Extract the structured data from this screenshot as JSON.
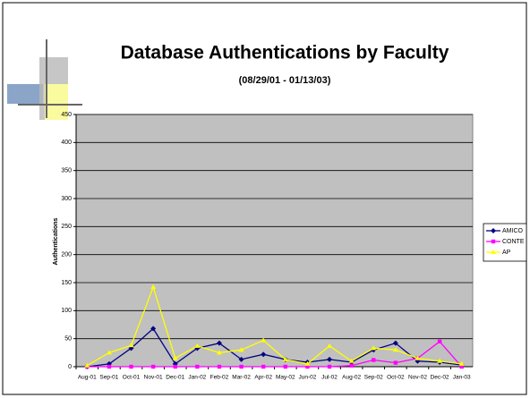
{
  "chart_data": {
    "type": "line",
    "title": "Database Authentications by Faculty",
    "subtitle": "(08/29/01 - 01/13/03)",
    "y_label": "Authentications",
    "categories": [
      "Aug-01",
      "Sep-01",
      "Oct-01",
      "Nov-01",
      "Dec-01",
      "Jan-02",
      "Feb-02",
      "Mar-02",
      "Apr-02",
      "May-02",
      "Jun-02",
      "Jul-02",
      "Aug-02",
      "Sep-02",
      "Oct-02",
      "Nov-02",
      "Dec-02",
      "Jan-03"
    ],
    "series": [
      {
        "name": "AMICO",
        "color": "#000080",
        "values": [
          0,
          5,
          33,
          68,
          5,
          33,
          42,
          13,
          22,
          13,
          8,
          13,
          8,
          30,
          42,
          10,
          8,
          3
        ]
      },
      {
        "name": "CONTE",
        "color": "#ff00ff",
        "values": [
          0,
          0,
          0,
          0,
          0,
          0,
          0,
          0,
          0,
          0,
          0,
          0,
          2,
          12,
          7,
          15,
          45,
          0
        ]
      },
      {
        "name": "AP",
        "color": "#ffff00",
        "values": [
          2,
          25,
          38,
          142,
          15,
          37,
          25,
          30,
          47,
          13,
          5,
          37,
          10,
          33,
          30,
          15,
          10,
          5
        ]
      }
    ],
    "ylim": [
      0,
      450
    ],
    "yticks": [
      0,
      50,
      100,
      150,
      200,
      250,
      300,
      350,
      400,
      450
    ],
    "grid": true,
    "plot_background": "#c0c0c0",
    "legend": "right"
  }
}
